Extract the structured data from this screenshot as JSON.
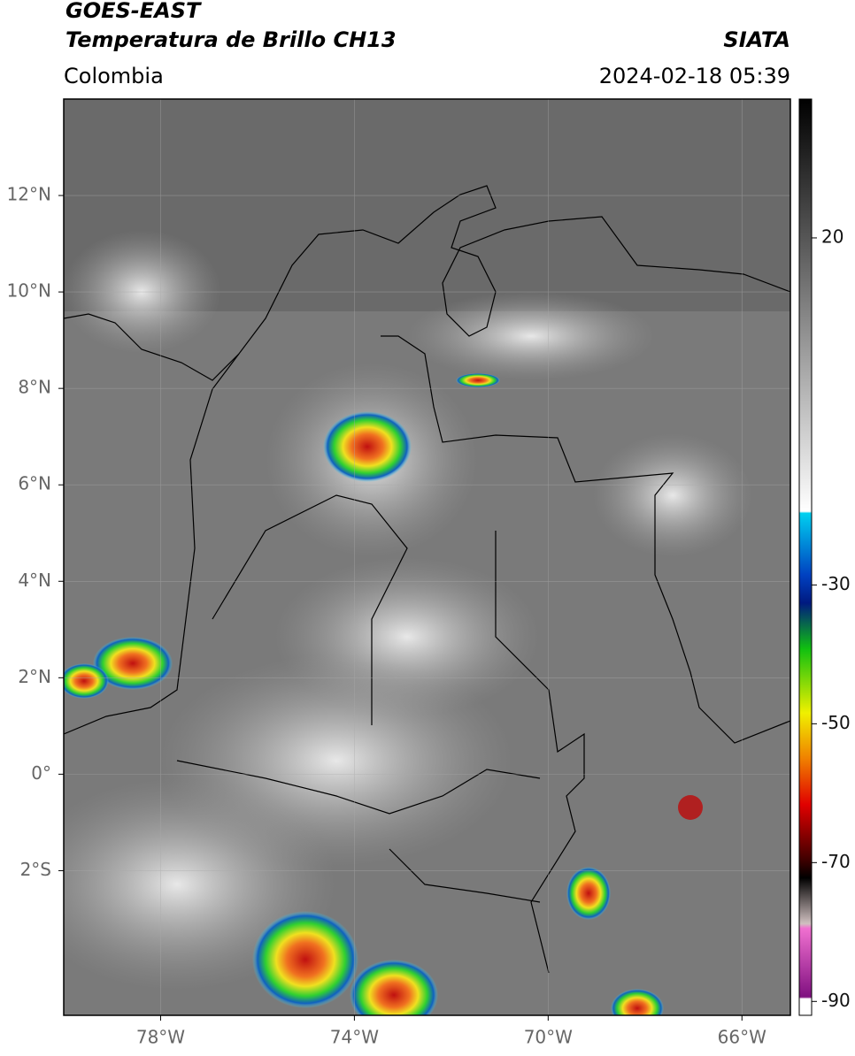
{
  "header": {
    "satellite": "GOES-EAST",
    "product": "Temperatura de Brillo CH13",
    "source": "SIATA",
    "region": "Colombia",
    "datetime": "2024-02-18 05:39"
  },
  "map": {
    "lon_range": [
      -80,
      -65
    ],
    "lat_range": [
      -5,
      14
    ],
    "lat_ticks": [
      {
        "value": 12,
        "label": "12°N"
      },
      {
        "value": 10,
        "label": "10°N"
      },
      {
        "value": 8,
        "label": "8°N"
      },
      {
        "value": 6,
        "label": "6°N"
      },
      {
        "value": 4,
        "label": "4°N"
      },
      {
        "value": 2,
        "label": "2°N"
      },
      {
        "value": 0,
        "label": "0°"
      },
      {
        "value": -2,
        "label": "2°S"
      }
    ],
    "lon_ticks": [
      {
        "value": -78,
        "label": "78°W"
      },
      {
        "value": -74,
        "label": "74°W"
      },
      {
        "value": -70,
        "label": "70°W"
      },
      {
        "value": -66,
        "label": "66°W"
      }
    ]
  },
  "colorbar": {
    "range": [
      -92,
      40
    ],
    "ticks": [
      20,
      -30,
      -50,
      -70,
      -90
    ]
  }
}
